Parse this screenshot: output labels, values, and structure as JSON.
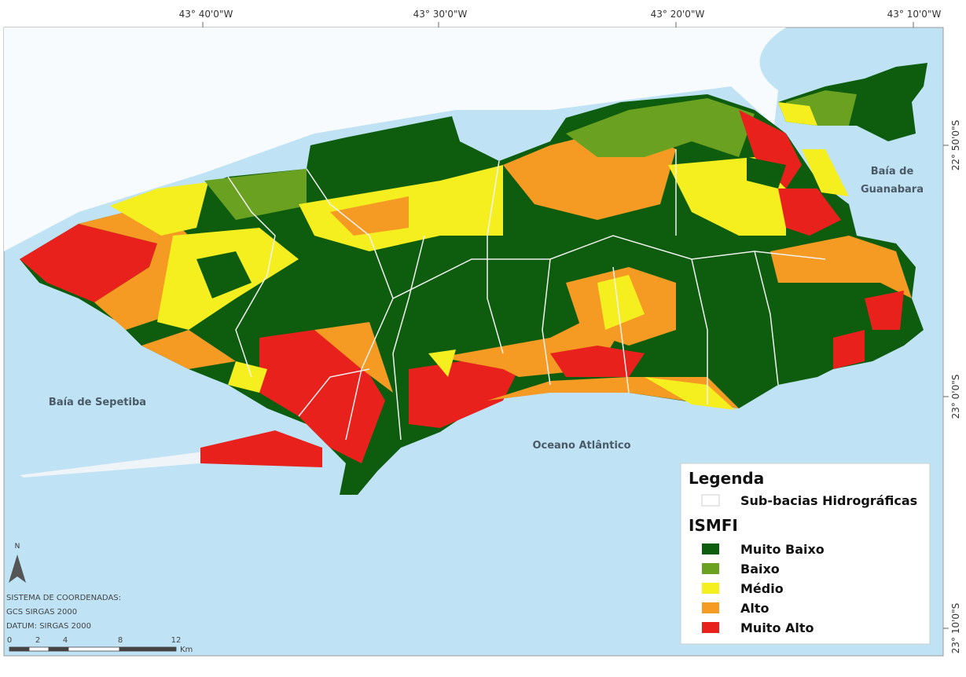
{
  "graticule": {
    "top": [
      "43°  40'0\"W",
      "43°  30'0\"W",
      "43°  20'0\"W",
      "43°  10'0\"W"
    ],
    "right": [
      "22°  50'0\"S",
      "23°  0'0\"S",
      "23°  10'0\"S"
    ]
  },
  "places": {
    "sepetiba": "Baía de Sepetiba",
    "atlantico": "Oceano Atlântico",
    "guanabara": [
      "Baía de",
      "Guanabara"
    ]
  },
  "legend": {
    "title": "Legenda",
    "boundary": "Sub-bacias Hidrográficas",
    "index_title": "ISMFI",
    "classes": [
      {
        "label": "Muito Baixo",
        "color": "#0e5c0e"
      },
      {
        "label": "Baixo",
        "color": "#6aa121"
      },
      {
        "label": "Médio",
        "color": "#f5ef1f"
      },
      {
        "label": "Alto",
        "color": "#f59a23"
      },
      {
        "label": "Muito Alto",
        "color": "#e8211d"
      }
    ]
  },
  "north": "N",
  "coordinate_notes": [
    "SISTEMA DE COORDENADAS:",
    "GCS SIRGAS 2000",
    "DATUM: SIRGAS 2000"
  ],
  "scale": {
    "ticks": [
      "0",
      "2",
      "4",
      "8",
      "12"
    ],
    "unit": "Km"
  }
}
